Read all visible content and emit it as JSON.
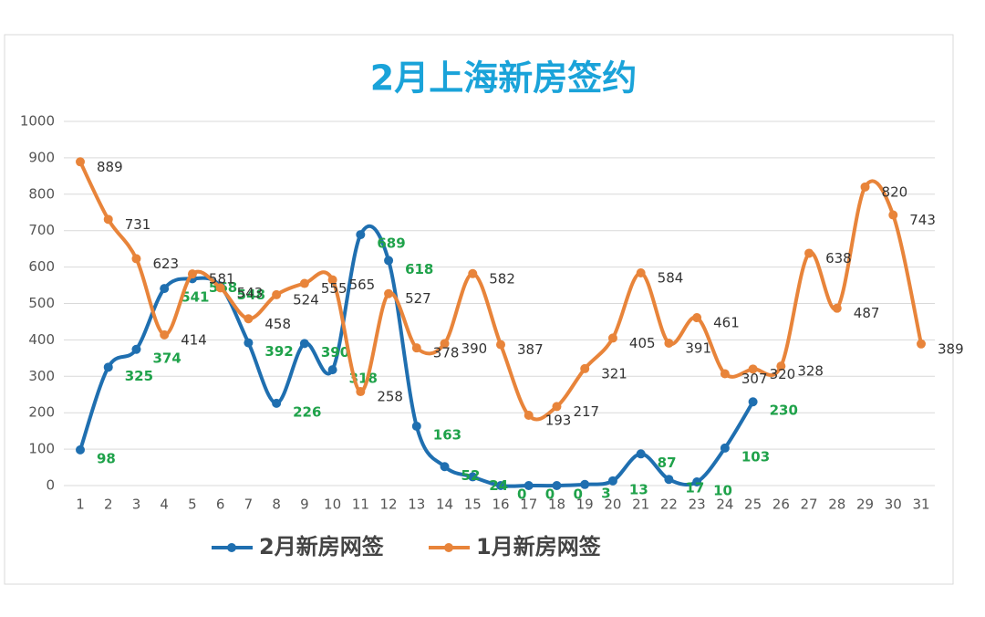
{
  "chart_data": {
    "type": "line",
    "title": "2月上海新房签约",
    "categories": [
      "1",
      "2",
      "3",
      "4",
      "5",
      "6",
      "7",
      "8",
      "9",
      "10",
      "11",
      "12",
      "13",
      "14",
      "15",
      "16",
      "17",
      "18",
      "19",
      "20",
      "21",
      "22",
      "23",
      "24",
      "25",
      "26",
      "27",
      "28",
      "29",
      "30",
      "31"
    ],
    "series": [
      {
        "name": "2月新房网签",
        "color": "#1f6fb0",
        "label_color": "#1fa24a",
        "values": [
          98,
          325,
          374,
          541,
          568,
          548,
          392,
          226,
          390,
          318,
          689,
          618,
          163,
          52,
          24,
          0,
          0,
          0,
          3,
          13,
          87,
          17,
          10,
          103,
          230,
          null,
          null,
          null,
          null,
          null,
          null
        ]
      },
      {
        "name": "1月新房网签",
        "color": "#e8843a",
        "label_color": "#333333",
        "values": [
          889,
          731,
          623,
          414,
          581,
          543,
          458,
          524,
          555,
          565,
          258,
          527,
          378,
          390,
          582,
          387,
          193,
          217,
          321,
          405,
          584,
          391,
          461,
          307,
          320,
          328,
          638,
          487,
          820,
          743,
          389
        ]
      }
    ],
    "ylim": [
      0,
      1000
    ],
    "yticks": [
      0,
      100,
      200,
      300,
      400,
      500,
      600,
      700,
      800,
      900,
      1000
    ],
    "grid": true,
    "legend": "bottom",
    "smooth": true
  }
}
